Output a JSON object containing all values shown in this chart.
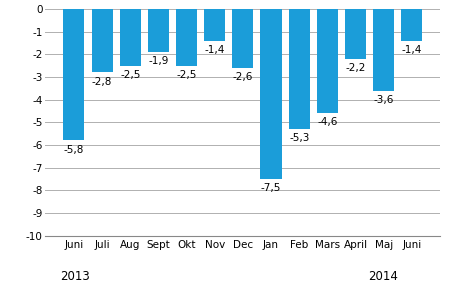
{
  "categories": [
    "Juni",
    "Juli",
    "Aug",
    "Sept",
    "Okt",
    "Nov",
    "Dec",
    "Jan",
    "Feb",
    "Mars",
    "April",
    "Maj",
    "Juni"
  ],
  "values": [
    -5.8,
    -2.8,
    -2.5,
    -1.9,
    -2.5,
    -1.4,
    -2.6,
    -7.5,
    -5.3,
    -4.6,
    -2.2,
    -3.6,
    -1.4
  ],
  "bar_color": "#1b9dd9",
  "ylim": [
    -10,
    0
  ],
  "yticks": [
    0,
    -1,
    -2,
    -3,
    -4,
    -5,
    -6,
    -7,
    -8,
    -9,
    -10
  ],
  "label_2013": "2013",
  "label_2014": "2014",
  "background_color": "#ffffff",
  "grid_color": "#b0b0b0",
  "label_fontsize": 7.5,
  "tick_fontsize": 7.5,
  "year_fontsize": 8.5,
  "bar_width": 0.75
}
